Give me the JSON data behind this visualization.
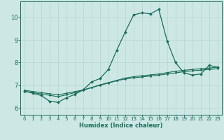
{
  "xlabel": "Humidex (Indice chaleur)",
  "xlim": [
    -0.5,
    23.5
  ],
  "ylim": [
    5.7,
    10.7
  ],
  "xticks": [
    0,
    1,
    2,
    3,
    4,
    5,
    6,
    7,
    8,
    9,
    10,
    11,
    12,
    13,
    14,
    15,
    16,
    17,
    18,
    19,
    20,
    21,
    22,
    23
  ],
  "yticks": [
    6,
    7,
    8,
    9,
    10
  ],
  "bg_color": "#cde8e4",
  "grid_color": "#b8d8d4",
  "line_color": "#1a6b5a",
  "line1_x": [
    0,
    1,
    2,
    3,
    4,
    5,
    6,
    7,
    8,
    9,
    10,
    11,
    12,
    13,
    14,
    15,
    16,
    17,
    18,
    19,
    20,
    21,
    22,
    23
  ],
  "line1_y": [
    6.75,
    6.65,
    6.55,
    6.3,
    6.25,
    6.45,
    6.6,
    6.8,
    7.15,
    7.3,
    7.7,
    8.55,
    9.35,
    10.1,
    10.2,
    10.15,
    10.35,
    8.95,
    8.0,
    7.55,
    7.45,
    7.5,
    7.88,
    7.8
  ],
  "line2_x": [
    0,
    1,
    2,
    3,
    4,
    5,
    6,
    7,
    8,
    9,
    10,
    11,
    12,
    13,
    14,
    15,
    16,
    17,
    18,
    19,
    20,
    21,
    22,
    23
  ],
  "line2_y": [
    6.72,
    6.68,
    6.62,
    6.56,
    6.5,
    6.58,
    6.68,
    6.78,
    6.9,
    7.02,
    7.12,
    7.22,
    7.32,
    7.38,
    7.42,
    7.46,
    7.5,
    7.56,
    7.62,
    7.66,
    7.7,
    7.73,
    7.76,
    7.8
  ],
  "line3_x": [
    0,
    1,
    2,
    3,
    4,
    5,
    6,
    7,
    8,
    9,
    10,
    11,
    12,
    13,
    14,
    15,
    16,
    17,
    18,
    19,
    20,
    21,
    22,
    23
  ],
  "line3_y": [
    6.78,
    6.73,
    6.68,
    6.63,
    6.58,
    6.65,
    6.72,
    6.8,
    6.9,
    7.0,
    7.1,
    7.2,
    7.28,
    7.33,
    7.37,
    7.41,
    7.45,
    7.5,
    7.55,
    7.6,
    7.64,
    7.67,
    7.7,
    7.73
  ]
}
